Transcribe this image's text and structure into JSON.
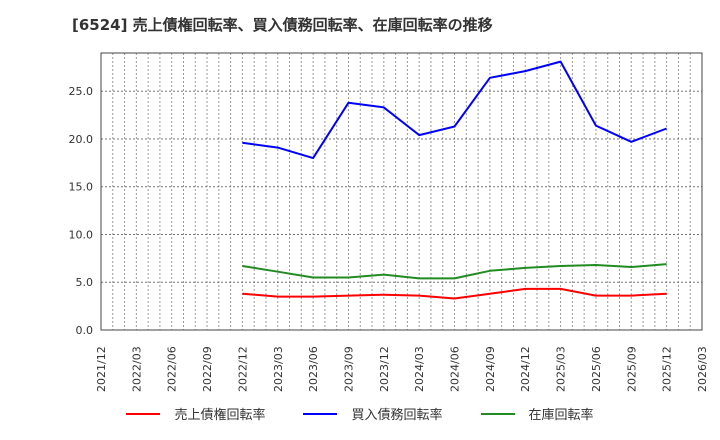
{
  "title": "[6524]  売上債権回転率、買入債務回転率、在庫回転率の推移",
  "chart_data": {
    "type": "line",
    "title": "[6524]  売上債権回転率、買入債務回転率、在庫回転率の推移",
    "xlabel": "",
    "ylabel": "",
    "ylim": [
      0,
      29
    ],
    "yticks": [
      "0.0",
      "5.0",
      "10.0",
      "15.0",
      "20.0",
      "25.0"
    ],
    "x_ticks": [
      "2021/12",
      "2022/03",
      "2022/06",
      "2022/09",
      "2022/12",
      "2023/03",
      "2023/06",
      "2023/09",
      "2023/12",
      "2024/03",
      "2024/06",
      "2024/09",
      "2024/12",
      "2025/03",
      "2025/06",
      "2025/09",
      "2025/12",
      "2026/03"
    ],
    "x": [
      "2022/12",
      "2023/03",
      "2023/06",
      "2023/09",
      "2023/12",
      "2024/03",
      "2024/06",
      "2024/09",
      "2024/12",
      "2025/03",
      "2025/06",
      "2025/09",
      "2025/12"
    ],
    "grid": true,
    "legend_position": "bottom",
    "series": [
      {
        "name": "売上債権回転率",
        "color": "#ff0000",
        "values": [
          3.8,
          3.5,
          3.5,
          3.6,
          3.7,
          3.6,
          3.3,
          3.8,
          4.3,
          4.3,
          3.6,
          3.6,
          3.8
        ]
      },
      {
        "name": "買入債務回転率",
        "color": "#0000ff",
        "values": [
          19.6,
          19.1,
          18.0,
          23.8,
          23.3,
          20.4,
          21.3,
          26.4,
          27.1,
          28.1,
          21.4,
          19.7,
          21.1
        ]
      },
      {
        "name": "在庫回転率",
        "color": "#228b22",
        "values": [
          6.7,
          6.1,
          5.5,
          5.5,
          5.8,
          5.4,
          5.4,
          6.2,
          6.5,
          6.7,
          6.8,
          6.6,
          6.9
        ]
      }
    ]
  },
  "legend": [
    {
      "label": "売上債権回転率",
      "color": "#ff0000"
    },
    {
      "label": "買入債務回転率",
      "color": "#0000ff"
    },
    {
      "label": "在庫回転率",
      "color": "#228b22"
    }
  ]
}
